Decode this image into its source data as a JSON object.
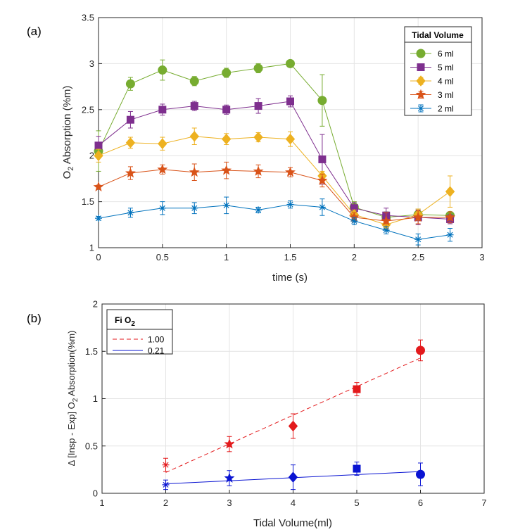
{
  "chart_data": [
    {
      "panel_label": "(a)",
      "type": "line",
      "xlabel": "time (s)",
      "ylabel_main": "O",
      "ylabel_sub": "2",
      "ylabel_rest": " Absorption (%m)",
      "xlim": [
        0,
        3
      ],
      "ylim": [
        1,
        3.5
      ],
      "xticks": [
        "0",
        "0.5",
        "1",
        "1.5",
        "2",
        "2.5",
        "3"
      ],
      "yticks": [
        "1",
        "1.5",
        "2",
        "2.5",
        "3",
        "3.5"
      ],
      "grid": true,
      "legend": {
        "title": "Tidal Volume",
        "placement": "top-right"
      },
      "x": [
        0,
        0.25,
        0.5,
        0.75,
        1.0,
        1.25,
        1.5,
        1.75,
        2.0,
        2.25,
        2.5,
        2.75
      ],
      "series": [
        {
          "name": "6 ml",
          "color": "#77AC30",
          "marker": "circle",
          "values": [
            2.05,
            2.78,
            2.93,
            2.81,
            2.9,
            2.95,
            3.0,
            2.6,
            1.44,
            1.33,
            1.36,
            1.35
          ],
          "errors": [
            0.22,
            0.07,
            0.11,
            0.05,
            0.05,
            0.05,
            0.03,
            0.28,
            0.06,
            0.06,
            0.06,
            0.04
          ]
        },
        {
          "name": "5 ml",
          "color": "#7E2F8E",
          "marker": "square",
          "values": [
            2.11,
            2.39,
            2.5,
            2.54,
            2.5,
            2.54,
            2.59,
            1.96,
            1.43,
            1.35,
            1.33,
            1.31
          ],
          "errors": [
            0.1,
            0.09,
            0.06,
            0.05,
            0.05,
            0.08,
            0.06,
            0.27,
            0.06,
            0.08,
            0.08,
            0.05
          ]
        },
        {
          "name": "4 ml",
          "color": "#EDB120",
          "marker": "diamond",
          "values": [
            2.0,
            2.14,
            2.13,
            2.21,
            2.18,
            2.2,
            2.18,
            1.78,
            1.36,
            1.25,
            1.36,
            1.61
          ],
          "errors": [
            0.07,
            0.06,
            0.07,
            0.09,
            0.06,
            0.05,
            0.08,
            0.05,
            0.05,
            0.05,
            0.06,
            0.17
          ]
        },
        {
          "name": "3 ml",
          "color": "#D95319",
          "marker": "pentagram",
          "values": [
            1.66,
            1.81,
            1.85,
            1.82,
            1.84,
            1.83,
            1.82,
            1.73,
            1.33,
            1.29,
            1.33,
            1.33
          ],
          "errors": [
            0.02,
            0.07,
            0.05,
            0.09,
            0.09,
            0.07,
            0.05,
            0.07,
            0.05,
            0.09,
            0.07,
            0.06
          ]
        },
        {
          "name": "2 ml",
          "color": "#0072BD",
          "marker": "asterisk",
          "values": [
            1.32,
            1.38,
            1.43,
            1.43,
            1.46,
            1.41,
            1.47,
            1.44,
            1.29,
            1.19,
            1.09,
            1.14
          ],
          "errors": [
            0.02,
            0.05,
            0.07,
            0.06,
            0.09,
            0.03,
            0.04,
            0.09,
            0.04,
            0.04,
            0.06,
            0.07
          ]
        }
      ]
    },
    {
      "panel_label": "(b)",
      "type": "scatter",
      "xlabel": "Tidal Volume(ml)",
      "ylabel_pre": "Δ [Insp - Exp] O",
      "ylabel_sub": "2",
      "ylabel_rest": " Absorption(%m)",
      "xlim": [
        1,
        7
      ],
      "ylim": [
        0,
        2
      ],
      "xticks": [
        "1",
        "2",
        "3",
        "4",
        "5",
        "6",
        "7"
      ],
      "yticks": [
        "0",
        "0.5",
        "1",
        "1.5",
        "2"
      ],
      "grid": true,
      "legend": {
        "title_main": "Fi O",
        "title_sub": "2",
        "placement": "top-left"
      },
      "x": [
        2,
        3,
        4,
        5,
        6
      ],
      "markers": [
        "asterisk",
        "pentagram",
        "diamond",
        "square",
        "circle"
      ],
      "series": [
        {
          "name": "1.00",
          "color": "#E31A1C",
          "line_style": "dashed",
          "values": [
            0.3,
            0.52,
            0.71,
            1.1,
            1.51
          ],
          "errors": [
            0.07,
            0.08,
            0.13,
            0.07,
            0.11
          ],
          "fit": {
            "x": [
              2,
              6
            ],
            "y": [
              0.22,
              1.43
            ]
          }
        },
        {
          "name": "0.21",
          "color": "#0A14D2",
          "line_style": "solid",
          "values": [
            0.09,
            0.16,
            0.17,
            0.26,
            0.2
          ],
          "errors": [
            0.05,
            0.08,
            0.13,
            0.07,
            0.12
          ],
          "fit": {
            "x": [
              2,
              6
            ],
            "y": [
              0.1,
              0.23
            ]
          }
        }
      ]
    }
  ]
}
